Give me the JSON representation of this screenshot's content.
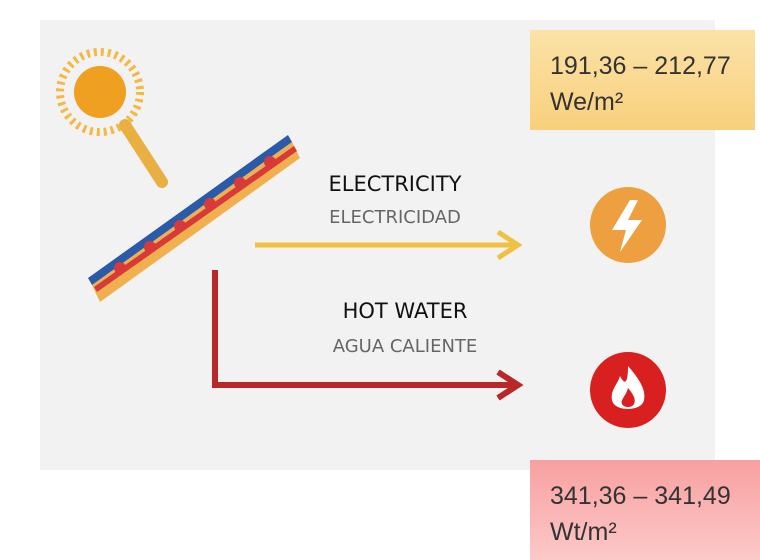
{
  "electricity": {
    "label": "ELECTRICITY",
    "label_es": "ELECTRICIDAD",
    "range": "191,36 – 212,77",
    "unit": "We/m²"
  },
  "hot_water": {
    "label": "HOT WATER",
    "label_es": "AGUA CALIENTE",
    "range": "341,36 – 341,49",
    "unit": "Wt/m²"
  }
}
